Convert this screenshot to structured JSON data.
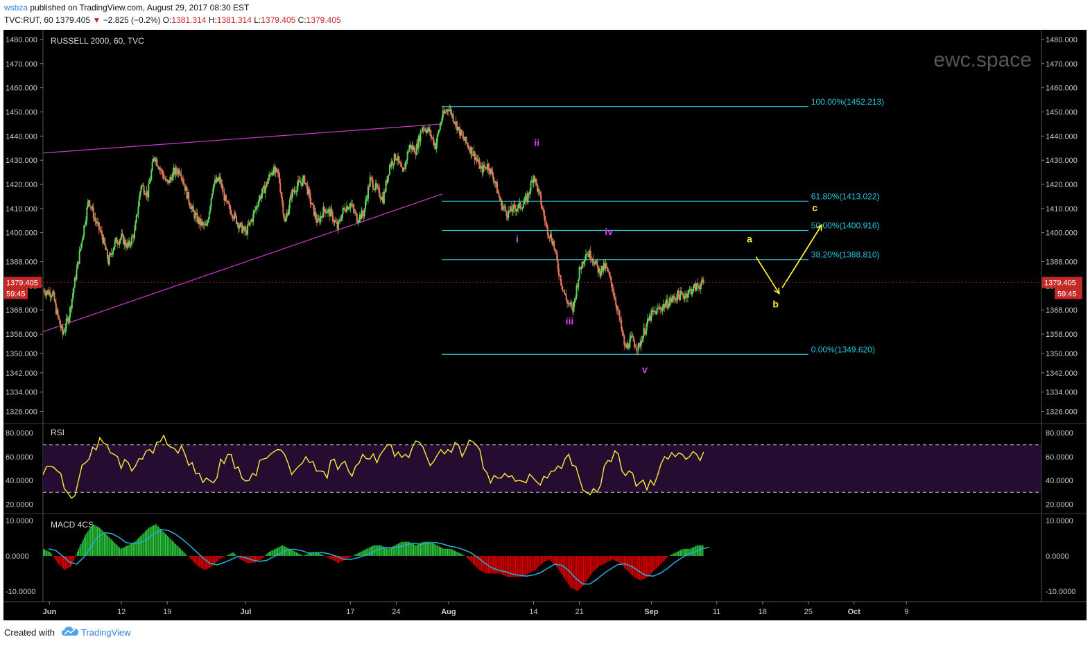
{
  "header": {
    "author": "wsbza",
    "published": " published on TradingView.com, August 29, 2017 08:30 EST",
    "symbol": "TVC:RUT, 60",
    "last": "1379.405",
    "change": "−2.825 (−0.2%)",
    "open_label": "O:",
    "open": "1381.314",
    "high_label": "H:",
    "high": "1381.314",
    "low_label": "L:",
    "low": "1379.405",
    "close_label": "C:",
    "close": "1379.405"
  },
  "footer": {
    "created_with": "Created with",
    "brand": "TradingView",
    "logo_icon": "tradingview-cloud-icon"
  },
  "colors": {
    "background": "#000000",
    "up_candle": "#5cd65c",
    "down_candle": "#e8735e",
    "fib_line": "#26c6da",
    "trendline": "#c236c2",
    "rsi_line": "#ffeb3b",
    "wave_label": "#e040fb",
    "abc_label": "#ffeb3b",
    "price_tag": "#c62828",
    "macd_pos": "#2ecc40",
    "macd_neg": "#e00000",
    "macd_signal": "#26a9d6"
  },
  "chart_data": {
    "type": "candlestick",
    "title": "RUSSELL 2000, 60, TVC",
    "watermark": "ewc.space",
    "price_axis": {
      "range": [
        1321,
        1484
      ],
      "ticks": [
        "1480.000",
        "1470.000",
        "1460.000",
        "1450.000",
        "1440.000",
        "1430.000",
        "1420.000",
        "1410.000",
        "1400.000",
        "1388.000",
        "1378.000",
        "1368.000",
        "1358.000",
        "1350.000",
        "1342.000",
        "1334.000",
        "1326.000"
      ]
    },
    "last_price_tag": {
      "price": "1379.405",
      "countdown": "59:45"
    },
    "x_axis": {
      "range_days": [
        0,
        106
      ],
      "ticks": [
        {
          "label": "Jun",
          "day": 1,
          "bold": true
        },
        {
          "label": "12",
          "day": 12
        },
        {
          "label": "19",
          "day": 19
        },
        {
          "label": "Jul",
          "day": 31,
          "bold": true
        },
        {
          "label": "17",
          "day": 47
        },
        {
          "label": "24",
          "day": 54
        },
        {
          "label": "Aug",
          "day": 62,
          "bold": true
        },
        {
          "label": "14",
          "day": 75
        },
        {
          "label": "21",
          "day": 82
        },
        {
          "label": "Sep",
          "day": 93,
          "bold": true
        },
        {
          "label": "11",
          "day": 103
        },
        {
          "label": "18",
          "day": 110
        },
        {
          "label": "25",
          "day": 117
        },
        {
          "label": "Oct",
          "day": 124,
          "bold": true
        },
        {
          "label": "9",
          "day": 132
        }
      ]
    },
    "price_path": [
      [
        0,
        1376
      ],
      [
        1.5,
        1375
      ],
      [
        2,
        1368
      ],
      [
        3,
        1358
      ],
      [
        4,
        1366
      ],
      [
        6,
        1398
      ],
      [
        7,
        1414
      ],
      [
        8,
        1405
      ],
      [
        9,
        1399
      ],
      [
        10,
        1388
      ],
      [
        11,
        1396
      ],
      [
        12,
        1398
      ],
      [
        13,
        1394
      ],
      [
        14,
        1400
      ],
      [
        15,
        1420
      ],
      [
        16,
        1416
      ],
      [
        17,
        1432
      ],
      [
        18,
        1426
      ],
      [
        19,
        1420
      ],
      [
        20,
        1425
      ],
      [
        21,
        1426
      ],
      [
        22,
        1416
      ],
      [
        23,
        1408
      ],
      [
        24,
        1404
      ],
      [
        25,
        1402
      ],
      [
        26,
        1420
      ],
      [
        27,
        1422
      ],
      [
        28,
        1412
      ],
      [
        29,
        1408
      ],
      [
        30,
        1403
      ],
      [
        31,
        1400
      ],
      [
        32,
        1406
      ],
      [
        33,
        1414
      ],
      [
        34,
        1419
      ],
      [
        35,
        1426
      ],
      [
        36,
        1424
      ],
      [
        37,
        1404
      ],
      [
        38,
        1416
      ],
      [
        39,
        1420
      ],
      [
        40,
        1422
      ],
      [
        41,
        1412
      ],
      [
        42,
        1404
      ],
      [
        43,
        1410
      ],
      [
        44,
        1408
      ],
      [
        45,
        1402
      ],
      [
        46,
        1410
      ],
      [
        47,
        1412
      ],
      [
        48,
        1406
      ],
      [
        49,
        1408
      ],
      [
        50,
        1422
      ],
      [
        51,
        1418
      ],
      [
        52,
        1414
      ],
      [
        53,
        1428
      ],
      [
        54,
        1432
      ],
      [
        55,
        1424
      ],
      [
        56,
        1436
      ],
      [
        57,
        1434
      ],
      [
        58,
        1444
      ],
      [
        59,
        1442
      ],
      [
        60,
        1436
      ],
      [
        61,
        1448
      ],
      [
        62,
        1452
      ],
      [
        63,
        1446
      ],
      [
        64,
        1440
      ],
      [
        65,
        1436
      ],
      [
        66,
        1432
      ],
      [
        67,
        1426
      ],
      [
        68,
        1428
      ],
      [
        69,
        1422
      ],
      [
        70,
        1412
      ],
      [
        71,
        1408
      ],
      [
        72,
        1410
      ],
      [
        73,
        1411
      ],
      [
        74,
        1414
      ],
      [
        75,
        1424
      ],
      [
        76,
        1414
      ],
      [
        77,
        1402
      ],
      [
        78,
        1396
      ],
      [
        79,
        1382
      ],
      [
        80,
        1372
      ],
      [
        81,
        1368
      ],
      [
        82,
        1384
      ],
      [
        83,
        1392
      ],
      [
        84,
        1390
      ],
      [
        85,
        1384
      ],
      [
        86,
        1386
      ],
      [
        87,
        1378
      ],
      [
        88,
        1366
      ],
      [
        89,
        1352
      ],
      [
        90,
        1356
      ],
      [
        91,
        1352
      ],
      [
        92,
        1360
      ],
      [
        93,
        1366
      ],
      [
        94,
        1368
      ],
      [
        95,
        1370
      ],
      [
        96,
        1372
      ],
      [
        97,
        1374
      ],
      [
        98,
        1374
      ],
      [
        99,
        1376
      ],
      [
        100,
        1378
      ],
      [
        101,
        1379
      ]
    ],
    "fibonacci": [
      {
        "level": "100.00%",
        "price": 1452.213,
        "label": "100.00%(1452.213)"
      },
      {
        "level": "61.80%",
        "price": 1413.022,
        "label": "61.80%(1413.022)"
      },
      {
        "level": "50.00%",
        "price": 1400.916,
        "label": "50.00%(1400.916)"
      },
      {
        "level": "38.20%",
        "price": 1388.81,
        "label": "38.20%(1388.810)"
      },
      {
        "level": "0.00%",
        "price": 1349.62,
        "label": "0.00%(1349.620)"
      }
    ],
    "trendlines": [
      {
        "from": [
          0,
          1433
        ],
        "to": [
          61,
          1445
        ]
      },
      {
        "from": [
          0,
          1359
        ],
        "to": [
          61,
          1416
        ]
      }
    ],
    "wave_labels": [
      {
        "text": "i",
        "day": 72.5,
        "price": 1396
      },
      {
        "text": "ii",
        "day": 75.5,
        "price": 1436
      },
      {
        "text": "iii",
        "day": 80.5,
        "price": 1362
      },
      {
        "text": "iv",
        "day": 86.5,
        "price": 1399
      },
      {
        "text": "v",
        "day": 92,
        "price": 1342
      }
    ],
    "abc_labels": [
      {
        "text": "a",
        "day": 108,
        "price": 1396
      },
      {
        "text": "b",
        "day": 112,
        "price": 1369
      },
      {
        "text": "c",
        "day": 118,
        "price": 1409
      }
    ],
    "abc_path": [
      [
        109,
        1390
      ],
      [
        112.5,
        1375
      ],
      [
        119,
        1403
      ]
    ],
    "rsi": {
      "label": "RSI",
      "ticks": [
        "80.0000",
        "60.0000",
        "40.0000",
        "20.0000"
      ],
      "range": [
        12,
        88
      ],
      "upper_band": 70,
      "lower_band": 30,
      "values": [
        45,
        52,
        48,
        33,
        25,
        40,
        55,
        68,
        76,
        70,
        62,
        50,
        55,
        52,
        58,
        66,
        72,
        78,
        68,
        63,
        62,
        55,
        46,
        42,
        38,
        58,
        62,
        50,
        42,
        40,
        44,
        58,
        62,
        66,
        62,
        45,
        52,
        60,
        56,
        48,
        42,
        58,
        54,
        48,
        52,
        62,
        58,
        55,
        66,
        70,
        64,
        62,
        68,
        72,
        60,
        56,
        66,
        66,
        72,
        60,
        74,
        70,
        50,
        38,
        42,
        46,
        44,
        40,
        38,
        42,
        36,
        42,
        48,
        50,
        62,
        52,
        32,
        28,
        30,
        52,
        56,
        62,
        44,
        46,
        38,
        32,
        36,
        54,
        58,
        60,
        62,
        60,
        62,
        64
      ]
    },
    "macd": {
      "label": "MACD 4CS",
      "ticks": [
        "10.0000",
        "0.0000",
        "-10.0000"
      ],
      "range": [
        -13,
        12
      ],
      "histogram": [
        2,
        1,
        -2,
        -4,
        -3,
        2,
        6,
        9,
        8,
        6,
        4,
        2,
        3,
        4,
        6,
        8,
        9,
        7,
        5,
        3,
        1,
        -1,
        -3,
        -4,
        -3,
        -1,
        0,
        1,
        -1,
        -2,
        -2,
        -1,
        1,
        2,
        3,
        2,
        1,
        0,
        1,
        1,
        0,
        -1,
        -2,
        -1,
        0,
        1,
        2,
        3,
        3,
        2,
        3,
        4,
        4,
        3,
        4,
        4,
        3,
        2,
        2,
        1,
        0,
        -2,
        -4,
        -5,
        -5,
        -5,
        -6,
        -6,
        -6,
        -5,
        -4,
        -2,
        -1,
        -3,
        -6,
        -9,
        -10,
        -8,
        -5,
        -3,
        -2,
        -1,
        -2,
        -4,
        -6,
        -7,
        -6,
        -4,
        -2,
        0,
        1,
        2,
        2,
        3,
        3
      ]
    }
  }
}
